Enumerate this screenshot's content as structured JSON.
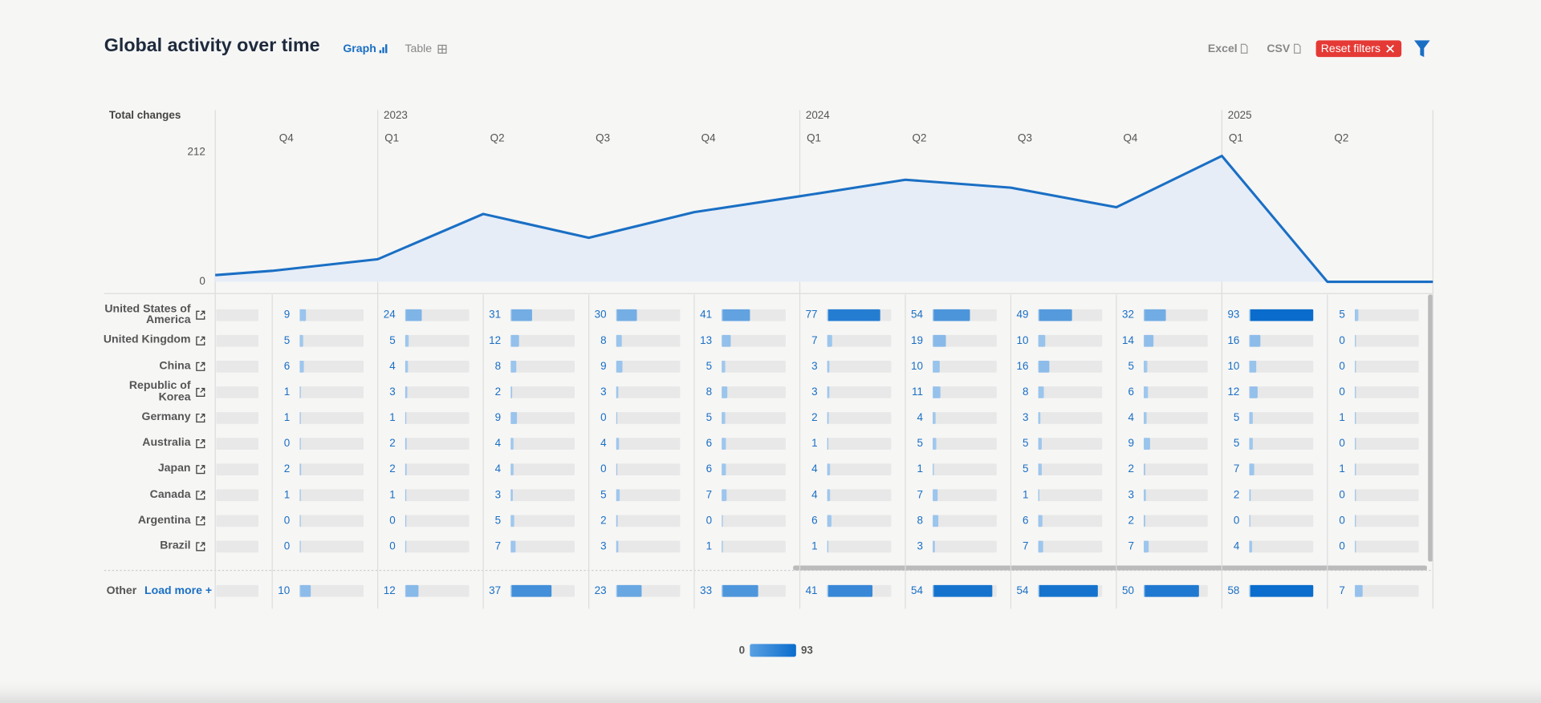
{
  "header": {
    "title": "Global activity over time",
    "views": [
      "Graph",
      "Table"
    ],
    "exports": [
      "Excel",
      "CSV"
    ],
    "reset": "Reset filters"
  },
  "chart_data": {
    "type": "line",
    "y_label": "Total changes",
    "values": [
      11,
      18,
      37,
      111,
      72,
      114,
      140,
      167,
      154,
      122,
      206,
      0,
      0
    ],
    "ylim": [
      0,
      212
    ],
    "yticks": [
      0,
      212
    ],
    "color": "#1a6fc4",
    "area_color": "#e6edf7"
  },
  "periods": {
    "years": [
      "2023",
      "2024",
      "2025"
    ],
    "quarters": [
      "Q4",
      "Q1",
      "Q2",
      "Q3",
      "Q4",
      "Q1",
      "Q2",
      "Q3",
      "Q4",
      "Q1",
      "Q2"
    ]
  },
  "table": {
    "rows": [
      {
        "name": "United States of America",
        "values": [
          9,
          24,
          31,
          30,
          41,
          77,
          54,
          49,
          32,
          93,
          5
        ]
      },
      {
        "name": "United Kingdom",
        "values": [
          5,
          5,
          12,
          8,
          13,
          7,
          19,
          10,
          14,
          16,
          0
        ]
      },
      {
        "name": "China",
        "values": [
          6,
          4,
          8,
          9,
          5,
          3,
          10,
          16,
          5,
          10,
          0
        ]
      },
      {
        "name": "Republic of Korea",
        "values": [
          1,
          3,
          2,
          3,
          8,
          3,
          11,
          8,
          6,
          12,
          0
        ]
      },
      {
        "name": "Germany",
        "values": [
          1,
          1,
          9,
          0,
          5,
          2,
          4,
          3,
          4,
          5,
          1
        ]
      },
      {
        "name": "Australia",
        "values": [
          0,
          2,
          4,
          4,
          6,
          1,
          5,
          5,
          9,
          5,
          0
        ]
      },
      {
        "name": "Japan",
        "values": [
          2,
          2,
          4,
          0,
          6,
          4,
          1,
          5,
          2,
          7,
          1
        ]
      },
      {
        "name": "Canada",
        "values": [
          1,
          1,
          3,
          5,
          7,
          4,
          7,
          1,
          3,
          2,
          0
        ]
      },
      {
        "name": "Argentina",
        "values": [
          0,
          0,
          5,
          2,
          0,
          6,
          8,
          6,
          2,
          0,
          0
        ]
      },
      {
        "name": "Brazil",
        "values": [
          0,
          0,
          7,
          3,
          1,
          1,
          3,
          7,
          7,
          4,
          0
        ]
      }
    ],
    "other": {
      "name": "Other",
      "action": "Load more +",
      "values": [
        10,
        12,
        37,
        23,
        33,
        41,
        54,
        54,
        50,
        58,
        7
      ]
    }
  },
  "legend": {
    "min": 0,
    "max": 93
  }
}
